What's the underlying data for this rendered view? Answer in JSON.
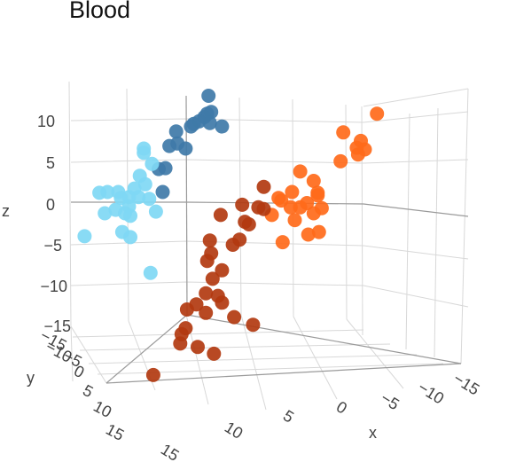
{
  "chart_data": {
    "type": "scatter",
    "projection": "3d",
    "title": "Blood",
    "xlabel": "x",
    "ylabel": "y",
    "zlabel": "z",
    "x_ticks": [
      "15",
      "10",
      "5",
      "0",
      "−5",
      "−10",
      "−15"
    ],
    "y_ticks": [
      "−15",
      "−10",
      "−5",
      "0",
      "5",
      "10",
      "15"
    ],
    "z_ticks": [
      "10",
      "5",
      "0",
      "−5",
      "−10",
      "−15"
    ],
    "grid": true,
    "legend": "none",
    "colors": {
      "dark_blue": "#3f79a8",
      "light_blue": "#7fd8f4",
      "orange": "#ff6a1a",
      "dark_red": "#b23a10"
    },
    "series": [
      {
        "color": "#3f79a8",
        "points": [
          [
            3.5,
            12.5
          ],
          [
            3.4,
            10.4
          ],
          [
            3.7,
            10.6
          ],
          [
            3.2,
            10
          ],
          [
            2.8,
            9.5
          ],
          [
            2.4,
            9.2
          ],
          [
            2.2,
            8.9
          ],
          [
            3.6,
            9.3
          ],
          [
            4.5,
            8.9
          ],
          [
            1.1,
            8.3
          ],
          [
            1.2,
            6.9
          ],
          [
            1.8,
            6.3
          ],
          [
            0.6,
            6.6
          ],
          [
            0.3,
            4
          ],
          [
            0.1,
            1.2
          ],
          [
            -0.2,
            3.9
          ]
        ]
      },
      {
        "color": "#7fd8f4",
        "points": [
          [
            -1.3,
            6.3
          ],
          [
            -1.3,
            5.8
          ],
          [
            -0.7,
            4.5
          ],
          [
            -1.6,
            3.1
          ],
          [
            -1.2,
            2.1
          ],
          [
            -2,
            1.6
          ],
          [
            -3.2,
            1.2
          ],
          [
            -4,
            1.2
          ],
          [
            -4.6,
            1.1
          ],
          [
            -3,
            0.5
          ],
          [
            -2.4,
            0.6
          ],
          [
            -1.7,
            0.6
          ],
          [
            -0.9,
            0.4
          ],
          [
            -2.4,
            -0.5
          ],
          [
            -3.4,
            -0.9
          ],
          [
            -4.2,
            -1.3
          ],
          [
            -2.7,
            -1.3
          ],
          [
            -2.3,
            -1.6
          ],
          [
            -0.4,
            -1.1
          ],
          [
            -2.9,
            -3.5
          ],
          [
            -5.7,
            -4
          ],
          [
            -2.3,
            -4.1
          ],
          [
            -0.8,
            -8.3
          ]
        ]
      },
      {
        "color": "#ff6a1a",
        "points": [
          [
            16,
            10.4
          ],
          [
            13.5,
            8.2
          ],
          [
            14.8,
            7.2
          ],
          [
            14.5,
            6.4
          ],
          [
            15.1,
            6.2
          ],
          [
            14.6,
            5.6
          ],
          [
            13.3,
            4.8
          ],
          [
            10.3,
            3.6
          ],
          [
            11.3,
            2.5
          ],
          [
            9.7,
            1.2
          ],
          [
            11.6,
            1.1
          ],
          [
            11.6,
            0.8
          ],
          [
            8.7,
            0.5
          ],
          [
            8.9,
            0.2
          ],
          [
            10.8,
            -0.1
          ],
          [
            9.6,
            -0.6
          ],
          [
            10.3,
            -0.6
          ],
          [
            11.9,
            -0.7
          ],
          [
            11.3,
            -1.3
          ],
          [
            8.2,
            -1.5
          ],
          [
            9.9,
            -2.1
          ],
          [
            11.7,
            -3.5
          ],
          [
            10.9,
            -3.8
          ],
          [
            9,
            -4.7
          ]
        ]
      },
      {
        "color": "#b23a10",
        "points": [
          [
            7.6,
            1.8
          ],
          [
            7.2,
            -0.6
          ],
          [
            6,
            -0.3
          ],
          [
            7.6,
            -0.8
          ],
          [
            4.4,
            -1.5
          ],
          [
            6.2,
            -2.3
          ],
          [
            6.5,
            -2.6
          ],
          [
            5.8,
            -4.4
          ],
          [
            3.6,
            -4.5
          ],
          [
            5.3,
            -5
          ],
          [
            3.7,
            -6
          ],
          [
            3.4,
            -6.9
          ],
          [
            4.5,
            -8
          ],
          [
            3.8,
            -9
          ],
          [
            3.3,
            -10.7
          ],
          [
            4.2,
            -11
          ],
          [
            4.5,
            -11.8
          ],
          [
            2.6,
            -12
          ],
          [
            1.9,
            -12.6
          ],
          [
            3.3,
            -13
          ],
          [
            5.4,
            -13.5
          ],
          [
            6.8,
            -14.4
          ],
          [
            1.8,
            -14.8
          ],
          [
            1.5,
            -15.5
          ],
          [
            1.4,
            -16.6
          ],
          [
            2.7,
            -17
          ],
          [
            3.9,
            -17.8
          ],
          [
            -0.6,
            -20.3
          ]
        ]
      }
    ]
  }
}
